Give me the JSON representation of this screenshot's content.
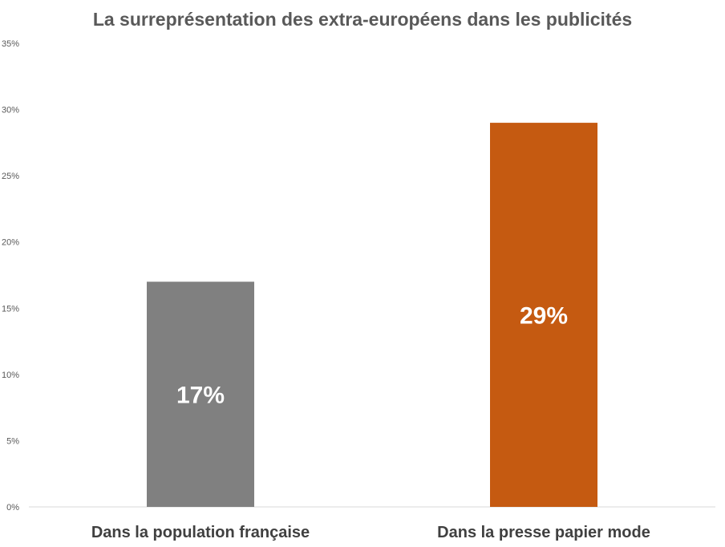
{
  "chart_data": {
    "type": "bar",
    "title": "La surreprésentation des extra-européens dans les publicités",
    "categories": [
      "Dans la population française",
      "Dans la presse papier mode"
    ],
    "values": [
      17,
      29
    ],
    "data_labels": [
      "17%",
      "29%"
    ],
    "colors": [
      "#808080",
      "#c55a11"
    ],
    "ylim": [
      0,
      35
    ],
    "y_ticks": [
      0,
      5,
      10,
      15,
      20,
      25,
      30,
      35
    ],
    "y_tick_labels": [
      "0%",
      "5%",
      "10%",
      "15%",
      "20%",
      "25%",
      "30%",
      "35%"
    ],
    "grid": false,
    "legend": "none"
  }
}
